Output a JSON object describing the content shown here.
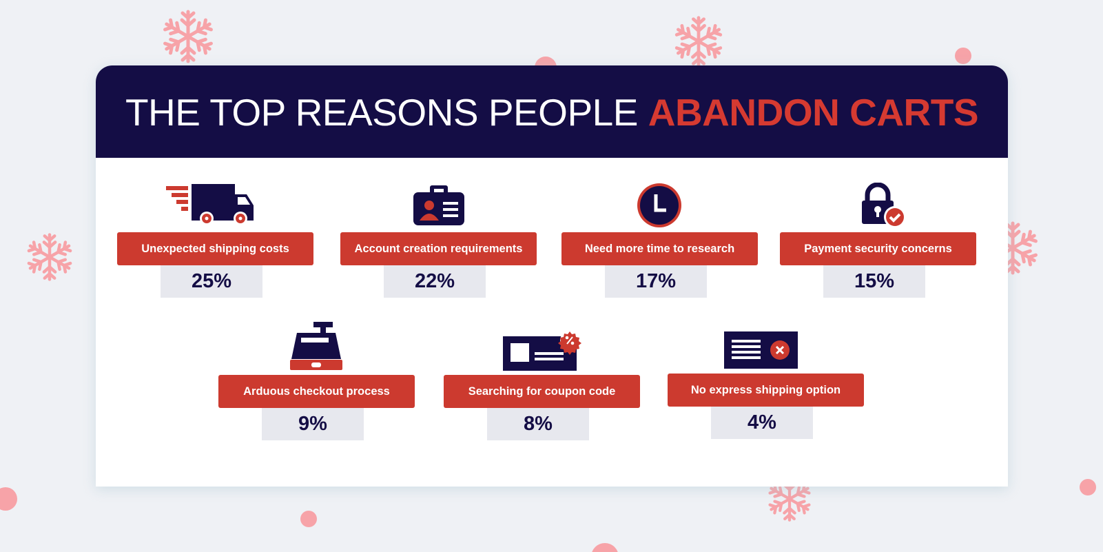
{
  "title": {
    "part1": "THE TOP REASONS PEOPLE ",
    "part2": "ABANDON CARTS"
  },
  "colors": {
    "navy": "#140d45",
    "red": "#cc3a2f",
    "title_accent": "#d63a31",
    "value_box": "#e7e8ee",
    "snowflake": "#f7a3a8"
  },
  "chart_data": {
    "type": "bar",
    "categories": [
      "Unexpected shipping costs",
      "Account creation requirements",
      "Need more time to research",
      "Payment security concerns",
      "Arduous checkout process",
      "Searching for coupon code",
      "No express shipping option"
    ],
    "values": [
      25,
      22,
      17,
      15,
      9,
      8,
      4
    ],
    "labels": [
      "25%",
      "22%",
      "17%",
      "15%",
      "9%",
      "8%",
      "4%"
    ],
    "icons": [
      "truck-icon",
      "id-card-icon",
      "clock-icon",
      "padlock-icon",
      "cash-register-icon",
      "coupon-card-icon",
      "email-error-icon"
    ]
  }
}
